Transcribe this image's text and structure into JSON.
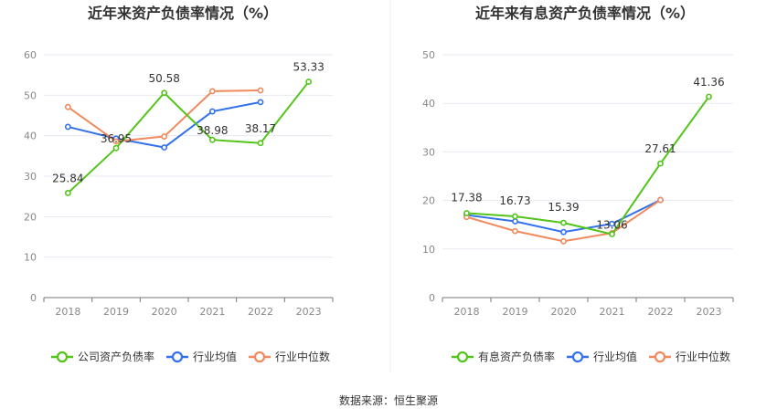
{
  "source": "数据来源：恒生聚源",
  "chart_data": [
    {
      "type": "line",
      "title": "近年来资产负债率情况（%）",
      "categories": [
        "2018",
        "2019",
        "2020",
        "2021",
        "2022",
        "2023"
      ],
      "ylim": [
        0,
        60
      ],
      "yticks": [
        0,
        10,
        20,
        30,
        40,
        50,
        60
      ],
      "grid": true,
      "legend_position": "bottom",
      "series": [
        {
          "name": "公司资产负债率",
          "color": "#52c41a",
          "values": [
            25.84,
            36.95,
            50.58,
            38.98,
            38.17,
            53.33
          ],
          "labels": [
            "25.84",
            "36.95",
            "50.58",
            "38.98",
            "38.17",
            "53.33"
          ]
        },
        {
          "name": "行业均值",
          "color": "#3370eb",
          "values": [
            42.2,
            39.3,
            37.1,
            46.0,
            48.3,
            null
          ]
        },
        {
          "name": "行业中位数",
          "color": "#f08a5d",
          "values": [
            47.1,
            38.6,
            39.8,
            51.0,
            51.2,
            null
          ]
        }
      ]
    },
    {
      "type": "line",
      "title": "近年来有息资产负债率情况（%）",
      "categories": [
        "2018",
        "2019",
        "2020",
        "2021",
        "2022",
        "2023"
      ],
      "ylim": [
        0,
        50
      ],
      "yticks": [
        0,
        10,
        20,
        30,
        40,
        50
      ],
      "grid": true,
      "legend_position": "bottom",
      "series": [
        {
          "name": "有息资产负债率",
          "color": "#52c41a",
          "values": [
            17.38,
            16.73,
            15.39,
            13.06,
            27.61,
            41.36
          ],
          "labels": [
            "17.38",
            "16.73",
            "15.39",
            "13.06",
            "27.61",
            "41.36"
          ]
        },
        {
          "name": "行业均值",
          "color": "#3370eb",
          "values": [
            17.0,
            15.7,
            13.5,
            15.2,
            20.1,
            null
          ]
        },
        {
          "name": "行业中位数",
          "color": "#f08a5d",
          "values": [
            16.6,
            13.7,
            11.6,
            13.3,
            20.1,
            null
          ]
        }
      ]
    }
  ]
}
